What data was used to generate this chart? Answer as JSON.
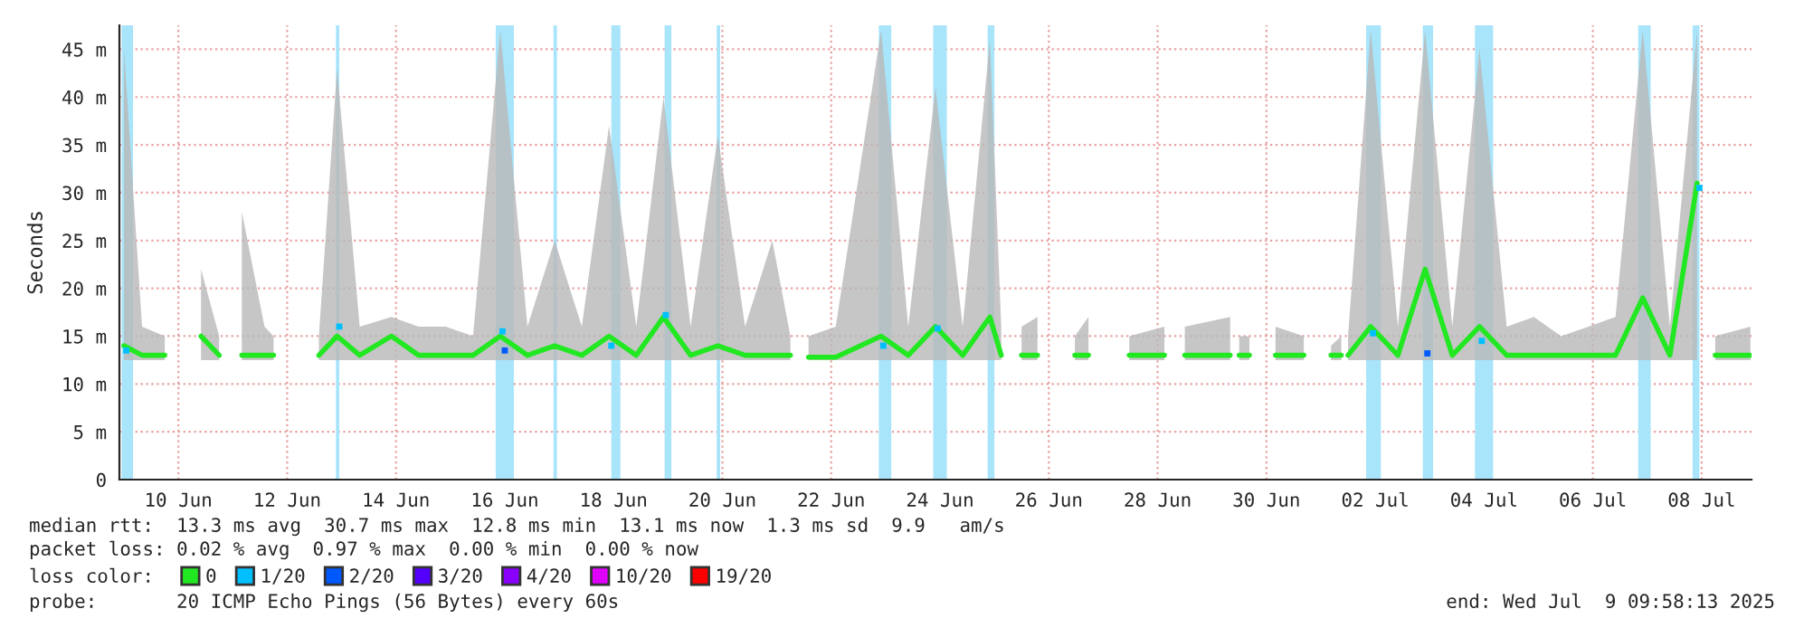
{
  "chart_data": {
    "type": "line",
    "ylabel": "Seconds",
    "legend_title": "loss color:",
    "legend": "bottom",
    "grid": true,
    "xlim": [
      "2025-06-09T10:00",
      "2025-07-09T10:00"
    ],
    "xticks": [
      {
        "value": "2025-06-10T12:00",
        "label": "10 Jun"
      },
      {
        "value": "2025-06-12T12:00",
        "label": "12 Jun"
      },
      {
        "value": "2025-06-14T12:00",
        "label": "14 Jun"
      },
      {
        "value": "2025-06-16T12:00",
        "label": "16 Jun"
      },
      {
        "value": "2025-06-18T12:00",
        "label": "18 Jun"
      },
      {
        "value": "2025-06-20T12:00",
        "label": "20 Jun"
      },
      {
        "value": "2025-06-22T12:00",
        "label": "22 Jun"
      },
      {
        "value": "2025-06-24T12:00",
        "label": "24 Jun"
      },
      {
        "value": "2025-06-26T12:00",
        "label": "26 Jun"
      },
      {
        "value": "2025-06-28T12:00",
        "label": "28 Jun"
      },
      {
        "value": "2025-06-30T12:00",
        "label": "30 Jun"
      },
      {
        "value": "2025-07-02T12:00",
        "label": "02 Jul"
      },
      {
        "value": "2025-07-04T12:00",
        "label": "04 Jul"
      },
      {
        "value": "2025-07-06T12:00",
        "label": "06 Jul"
      },
      {
        "value": "2025-07-08T12:00",
        "label": "08 Jul"
      }
    ],
    "ylim": [
      0,
      47.5
    ],
    "yticks": [
      0,
      {
        "value": 5,
        "label": "5 m"
      },
      {
        "value": 10,
        "label": "10 m"
      },
      {
        "value": 15,
        "label": "15 m"
      },
      {
        "value": 20,
        "label": "20 m"
      },
      {
        "value": 25,
        "label": "25 m"
      },
      {
        "value": 30,
        "label": "30 m"
      },
      {
        "value": 35,
        "label": "35 m"
      },
      {
        "value": 40,
        "label": "40 m"
      },
      {
        "value": 45,
        "label": "45 m"
      }
    ],
    "bands": [
      {
        "axis": "x",
        "from": "2025-06-09T11:00",
        "to": "2025-06-09T16:00",
        "color": "#a8e4fa"
      },
      {
        "axis": "x",
        "from": "2025-06-13T09:30",
        "to": "2025-06-13T11:00",
        "color": "#a8e4fa"
      },
      {
        "axis": "x",
        "from": "2025-06-16T08:00",
        "to": "2025-06-16T16:00",
        "color": "#a8e4fa"
      },
      {
        "axis": "x",
        "from": "2025-06-17T09:30",
        "to": "2025-06-17T11:00",
        "color": "#a8e4fa"
      },
      {
        "axis": "x",
        "from": "2025-06-18T11:00",
        "to": "2025-06-18T15:00",
        "color": "#a8e4fa"
      },
      {
        "axis": "x",
        "from": "2025-06-19T10:30",
        "to": "2025-06-19T13:30",
        "color": "#a8e4fa"
      },
      {
        "axis": "x",
        "from": "2025-06-20T09:30",
        "to": "2025-06-20T11:00",
        "color": "#a8e4fa"
      },
      {
        "axis": "x",
        "from": "2025-06-23T09:00",
        "to": "2025-06-23T14:30",
        "color": "#a8e4fa"
      },
      {
        "axis": "x",
        "from": "2025-06-24T09:00",
        "to": "2025-06-24T15:00",
        "color": "#a8e4fa"
      },
      {
        "axis": "x",
        "from": "2025-06-25T09:00",
        "to": "2025-06-25T12:00",
        "color": "#a8e4fa"
      },
      {
        "axis": "x",
        "from": "2025-07-02T08:00",
        "to": "2025-07-02T14:30",
        "color": "#a8e4fa"
      },
      {
        "axis": "x",
        "from": "2025-07-03T09:00",
        "to": "2025-07-03T13:30",
        "color": "#a8e4fa"
      },
      {
        "axis": "x",
        "from": "2025-07-04T08:00",
        "to": "2025-07-04T16:00",
        "color": "#a8e4fa"
      },
      {
        "axis": "x",
        "from": "2025-07-07T08:00",
        "to": "2025-07-07T13:30",
        "color": "#a8e4fa"
      },
      {
        "axis": "x",
        "from": "2025-07-08T08:00",
        "to": "2025-07-08T11:00",
        "color": "#a8e4fa"
      }
    ],
    "series": [
      {
        "name": "0",
        "color": "#22e822",
        "x": [
          "2025-06-09T12:00",
          "2025-06-09T20:00",
          "2025-06-10T06:00",
          "2025-06-10T14:00",
          "2025-06-10T22:00",
          "2025-06-11T06:00",
          "2025-06-11T11:00",
          "2025-06-11T16:00",
          "2025-06-12T02:00",
          "2025-06-12T06:00",
          "2025-06-12T15:00",
          "2025-06-13T02:00",
          "2025-06-13T10:00",
          "2025-06-13T20:00",
          "2025-06-14T10:00",
          "2025-06-14T22:00",
          "2025-06-15T10:00",
          "2025-06-15T22:00",
          "2025-06-16T10:00",
          "2025-06-16T22:00",
          "2025-06-17T10:00",
          "2025-06-17T22:00",
          "2025-06-18T10:00",
          "2025-06-18T22:00",
          "2025-06-19T10:00",
          "2025-06-19T22:00",
          "2025-06-20T10:00",
          "2025-06-20T22:00",
          "2025-06-21T10:00",
          "2025-06-21T18:00",
          "2025-06-21T21:00",
          "2025-06-22T02:00",
          "2025-06-22T14:00",
          "2025-06-23T10:00",
          "2025-06-23T22:00",
          "2025-06-24T10:00",
          "2025-06-24T22:00",
          "2025-06-25T10:00",
          "2025-06-25T15:00",
          "2025-06-25T19:00",
          "2025-06-26T00:00",
          "2025-06-26T07:00",
          "2025-06-26T15:00",
          "2025-06-26T23:30",
          "2025-06-27T05:30",
          "2025-06-27T14:00",
          "2025-06-27T23:30",
          "2025-06-28T15:00",
          "2025-06-28T20:00",
          "2025-06-29T00:00",
          "2025-06-29T20:00",
          "2025-06-29T22:00",
          "2025-06-30T00:00",
          "2025-06-30T04:30",
          "2025-06-30T10:00",
          "2025-06-30T16:00",
          "2025-07-01T04:30",
          "2025-07-01T11:00",
          "2025-07-01T16:30",
          "2025-07-01T21:00",
          "2025-07-01T22:30",
          "2025-07-02T00:00",
          "2025-07-02T10:00",
          "2025-07-02T22:00",
          "2025-07-03T10:00",
          "2025-07-03T22:00",
          "2025-07-04T10:00",
          "2025-07-04T22:00",
          "2025-07-05T10:00",
          "2025-07-05T22:00",
          "2025-07-06T10:00",
          "2025-07-06T22:00",
          "2025-07-07T10:00",
          "2025-07-07T22:00",
          "2025-07-08T10:00",
          "2025-07-08T14:00",
          "2025-07-08T18:00",
          "2025-07-09T09:30"
        ],
        "values": [
          14,
          13,
          13,
          null,
          15,
          13,
          null,
          13,
          13,
          13,
          null,
          13,
          15,
          13,
          15,
          13,
          13,
          13,
          15,
          13,
          14,
          13,
          15,
          13,
          17,
          13,
          14,
          13,
          13,
          13,
          null,
          12.8,
          12.8,
          15,
          13,
          16,
          13,
          17,
          13,
          null,
          13,
          13,
          null,
          13,
          13,
          null,
          13,
          13,
          null,
          13,
          13,
          null,
          13,
          13,
          null,
          13,
          13,
          null,
          13,
          13,
          null,
          13,
          16,
          13,
          22,
          13,
          16,
          13,
          13,
          13,
          13,
          13,
          19,
          13,
          31,
          null,
          13,
          13
        ],
        "lower": [
          12.5,
          12.5,
          12.5,
          null,
          12.5,
          12.5,
          null,
          12.5,
          12.5,
          12.5,
          null,
          12.5,
          12.5,
          12.5,
          12.5,
          12.5,
          12.5,
          12.5,
          12.5,
          12.5,
          12.5,
          12.5,
          12.5,
          12.5,
          12.5,
          12.5,
          12.5,
          12.5,
          12.5,
          12.5,
          null,
          12.5,
          12.5,
          12.5,
          12.5,
          12.5,
          12.5,
          12.5,
          12.5,
          null,
          12.5,
          12.5,
          null,
          12.5,
          12.5,
          null,
          12.5,
          12.5,
          null,
          12.5,
          12.5,
          null,
          12.5,
          12.5,
          null,
          12.5,
          12.5,
          null,
          12.5,
          12.5,
          null,
          12.5,
          12.5,
          12.5,
          12.5,
          12.5,
          12.5,
          12.5,
          12.5,
          12.5,
          12.5,
          12.5,
          12.5,
          12.5,
          12.5,
          null,
          12.5,
          12.5
        ],
        "upper": [
          45,
          16,
          15,
          null,
          22,
          15,
          null,
          28,
          16,
          15,
          null,
          15,
          43,
          16,
          17,
          16,
          16,
          15,
          47,
          16,
          25,
          16,
          37,
          16,
          40,
          16,
          36,
          16,
          25,
          15,
          null,
          15,
          16,
          47,
          16,
          41,
          16,
          46,
          16,
          null,
          16,
          17,
          null,
          15,
          17,
          null,
          15,
          16,
          null,
          16,
          17,
          null,
          15,
          15,
          null,
          16,
          15,
          null,
          14,
          15,
          null,
          15,
          47,
          16,
          47,
          16,
          45,
          16,
          17,
          15,
          16,
          17,
          47,
          16,
          47,
          null,
          15,
          16
        ]
      },
      {
        "name": "1/20",
        "color": "#00c0ff",
        "type": "scatter",
        "x": [
          "2025-06-09T13:00",
          "2025-06-13T11:00",
          "2025-06-16T11:00",
          "2025-06-18T11:00",
          "2025-06-19T11:00",
          "2025-06-23T11:00",
          "2025-06-24T11:00",
          "2025-07-02T11:00",
          "2025-07-04T11:00",
          "2025-07-08T11:00"
        ],
        "values": [
          13.5,
          16,
          15.5,
          14,
          17.2,
          14,
          15.8,
          15.3,
          14.5,
          30.5
        ]
      },
      {
        "name": "2/20",
        "color": "#0059ff",
        "type": "scatter",
        "x": [
          "2025-06-16T12:00",
          "2025-07-03T11:00"
        ],
        "values": [
          13.5,
          13.2
        ]
      },
      {
        "name": "3/20",
        "color": "#5500ff",
        "type": "scatter"
      },
      {
        "name": "4/20",
        "color": "#8a00ff",
        "type": "scatter"
      },
      {
        "name": "10/20",
        "color": "#e000ff",
        "type": "scatter"
      },
      {
        "name": "19/20",
        "color": "#ff0000",
        "type": "scatter"
      }
    ],
    "annotations": [
      "median rtt:  13.3 ms avg  30.7 ms max  12.8 ms min  13.1 ms now  1.3 ms sd  9.9   am/s",
      "packet loss: 0.02 % avg  0.97 % max  0.00 % min  0.00 % now",
      "probe:       20 ICMP Echo Pings (56 Bytes) every 60s",
      "end: Wed Jul  9 09:58:13 2025"
    ]
  }
}
